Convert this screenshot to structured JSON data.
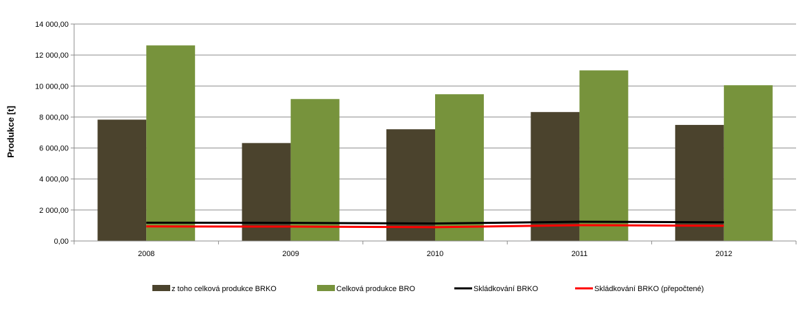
{
  "chart_data": {
    "type": "bar",
    "xlabel": "",
    "ylabel": "Produkce [t]",
    "ylim": [
      0,
      14000
    ],
    "yticks": [
      "0,00",
      "2 000,00",
      "4 000,00",
      "6 000,00",
      "8 000,00",
      "10 000,00",
      "12 000,00",
      "14 000,00"
    ],
    "ytick_values": [
      0,
      2000,
      4000,
      6000,
      8000,
      10000,
      12000,
      14000
    ],
    "categories": [
      "2008",
      "2009",
      "2010",
      "2011",
      "2012"
    ],
    "grid": true,
    "legend_position": "bottom",
    "series": [
      {
        "name": "z toho celková produkce BRKO",
        "type": "bar",
        "color": "#4b432d",
        "values": [
          7830,
          6320,
          7210,
          8320,
          7490
        ]
      },
      {
        "name": "Celková produkce BRO",
        "type": "bar",
        "color": "#77933c",
        "values": [
          12620,
          9160,
          9470,
          11010,
          10050
        ]
      },
      {
        "name": "Skládkování BRKO",
        "type": "line",
        "color": "#000000",
        "values": [
          1180,
          1170,
          1130,
          1240,
          1210
        ]
      },
      {
        "name": "Skládkování BRKO (přepočtené)",
        "type": "line",
        "color": "#ff0000",
        "values": [
          940,
          930,
          890,
          1020,
          980
        ]
      }
    ]
  }
}
